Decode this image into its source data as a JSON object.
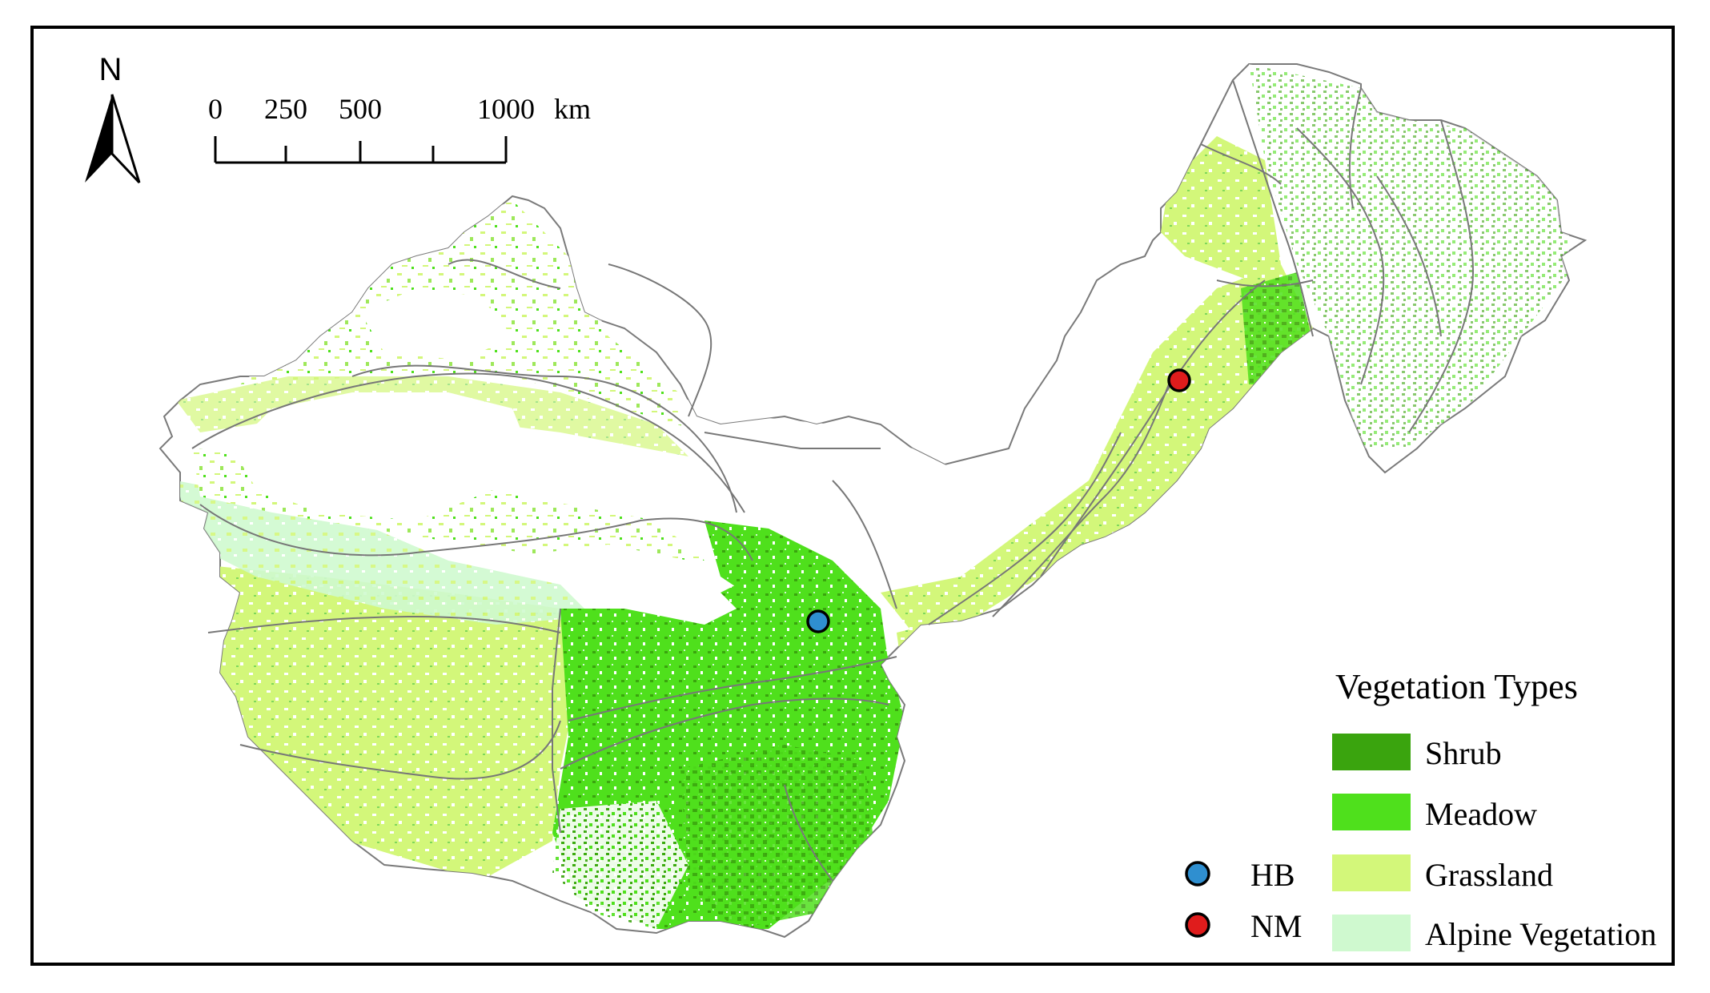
{
  "north_arrow": {
    "label": "N"
  },
  "scale_bar": {
    "ticks": [
      "0",
      "250",
      "500",
      "1000"
    ],
    "unit": "km"
  },
  "legend": {
    "title": "Vegetation Types",
    "items": [
      {
        "name": "Shrub",
        "color": "#3aa40e"
      },
      {
        "name": "Meadow",
        "color": "#4fe01c"
      },
      {
        "name": "Grassland",
        "color": "#d3f77a"
      },
      {
        "name": "Alpine Vegetation",
        "color": "#cff9cf"
      }
    ]
  },
  "sites": [
    {
      "name": "HB",
      "color": "#2f8fd0"
    },
    {
      "name": "NM",
      "color": "#e01c1c"
    }
  ]
}
